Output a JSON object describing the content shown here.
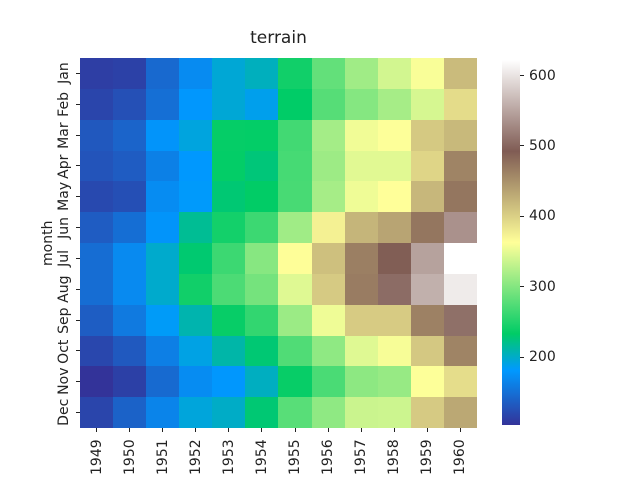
{
  "figure": {
    "background": "#ffffff",
    "text_color": "#222222"
  },
  "chart_data": {
    "type": "heatmap",
    "title": "terrain",
    "xlabel": "",
    "ylabel": "month",
    "x_ticklabels": [
      "1949",
      "1950",
      "1951",
      "1952",
      "1953",
      "1954",
      "1955",
      "1956",
      "1957",
      "1958",
      "1959",
      "1960"
    ],
    "y_ticklabels": [
      "Jan",
      "Feb",
      "Mar",
      "Apr",
      "May",
      "Jun",
      "Jul",
      "Aug",
      "Sep",
      "Oct",
      "Nov",
      "Dec"
    ],
    "values": [
      [
        112,
        115,
        145,
        171,
        196,
        204,
        242,
        284,
        315,
        340,
        360,
        417
      ],
      [
        118,
        126,
        150,
        180,
        196,
        188,
        233,
        277,
        301,
        318,
        342,
        391
      ],
      [
        132,
        141,
        178,
        193,
        236,
        235,
        267,
        317,
        356,
        362,
        406,
        419
      ],
      [
        129,
        135,
        163,
        181,
        235,
        227,
        269,
        313,
        348,
        348,
        396,
        461
      ],
      [
        121,
        125,
        172,
        183,
        229,
        234,
        270,
        318,
        355,
        363,
        420,
        472
      ],
      [
        135,
        149,
        178,
        218,
        243,
        264,
        315,
        374,
        422,
        435,
        472,
        535
      ],
      [
        148,
        170,
        199,
        230,
        264,
        302,
        364,
        413,
        465,
        491,
        548,
        622
      ],
      [
        148,
        170,
        199,
        242,
        272,
        293,
        347,
        405,
        467,
        505,
        559,
        606
      ],
      [
        136,
        158,
        184,
        209,
        237,
        259,
        312,
        355,
        404,
        404,
        463,
        508
      ],
      [
        119,
        133,
        162,
        191,
        211,
        229,
        274,
        306,
        347,
        359,
        407,
        461
      ],
      [
        104,
        114,
        146,
        172,
        180,
        203,
        237,
        271,
        305,
        310,
        362,
        390
      ],
      [
        118,
        140,
        166,
        194,
        201,
        229,
        278,
        306,
        336,
        337,
        405,
        432
      ]
    ],
    "vmin": 104,
    "vmax": 622,
    "grid": false,
    "legend": false,
    "colormap": {
      "name": "terrain",
      "stops": [
        {
          "t": 0.0,
          "color": "#333399"
        },
        {
          "t": 0.15,
          "color": "#0099ff"
        },
        {
          "t": 0.25,
          "color": "#00cc66"
        },
        {
          "t": 0.5,
          "color": "#ffff99"
        },
        {
          "t": 0.75,
          "color": "#805c54"
        },
        {
          "t": 1.0,
          "color": "#ffffff"
        }
      ]
    },
    "colorbar": {
      "position": "right",
      "ticks": [
        "200",
        "300",
        "400",
        "500",
        "600"
      ]
    }
  }
}
